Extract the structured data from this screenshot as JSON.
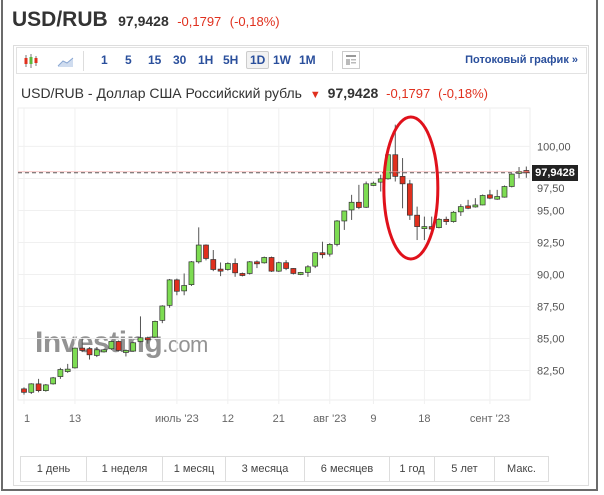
{
  "header": {
    "symbol": "USD/RUB",
    "price": "97,9428",
    "change": "-0,1797",
    "change_pct": "(-0,18%)"
  },
  "toolbar": {
    "chart_type_icons": [
      "candlestick-icon",
      "area-chart-icon"
    ],
    "intervals": [
      "1",
      "5",
      "15",
      "30",
      "1H",
      "5H",
      "1D",
      "1W",
      "1M"
    ],
    "active_interval": "1D",
    "doc_icon": "template-icon",
    "stream_link": "Потоковый график »"
  },
  "subtitle": {
    "title": "USD/RUB - Доллар США Российский рубль",
    "price": "97,9428",
    "change": "-0,1797",
    "change_pct": "(-0,18%)"
  },
  "watermark": {
    "text": "Investing",
    "suffix": ".com"
  },
  "chart_data": {
    "type": "candlestick",
    "ylim": [
      80.2,
      103.0
    ],
    "grid": true,
    "last_price": 97.9428,
    "last_price_label": "97,9428",
    "colors": {
      "up": "#7ddc52",
      "down": "#e0301e",
      "annotation": "#e0111b"
    },
    "yticks": [
      {
        "value": 100,
        "label": "100,00"
      },
      {
        "value": 97.5,
        "label": "97,50"
      },
      {
        "value": 95,
        "label": "95,00"
      },
      {
        "value": 92.5,
        "label": "92,50"
      },
      {
        "value": 90,
        "label": "90,00"
      },
      {
        "value": 87.5,
        "label": "87,50"
      },
      {
        "value": 85,
        "label": "85,00"
      },
      {
        "value": 82.5,
        "label": "82,50"
      }
    ],
    "xticks": [
      {
        "index": 0,
        "label": "1"
      },
      {
        "index": 7,
        "label": "13"
      },
      {
        "index": 21,
        "label": "июль '23"
      },
      {
        "index": 28,
        "label": "12"
      },
      {
        "index": 35,
        "label": "21"
      },
      {
        "index": 42,
        "label": "авг '23"
      },
      {
        "index": 48,
        "label": "9"
      },
      {
        "index": 55,
        "label": "18"
      },
      {
        "index": 64,
        "label": "сент '23"
      }
    ],
    "annotation": {
      "type": "ellipse",
      "around_candles": [
        50,
        56
      ]
    },
    "candles_ohlc": [
      [
        81.07,
        81.19,
        80.62,
        80.8
      ],
      [
        80.8,
        81.51,
        80.67,
        81.46
      ],
      [
        81.46,
        81.85,
        80.8,
        80.93
      ],
      [
        80.93,
        81.45,
        80.85,
        81.38
      ],
      [
        81.46,
        82.0,
        81.4,
        81.93
      ],
      [
        82.03,
        82.71,
        81.85,
        82.58
      ],
      [
        82.42,
        83.02,
        82.32,
        82.61
      ],
      [
        82.71,
        84.3,
        82.65,
        84.25
      ],
      [
        84.25,
        84.98,
        83.94,
        84.07
      ],
      [
        84.2,
        84.33,
        83.36,
        83.73
      ],
      [
        83.68,
        84.33,
        83.55,
        84.12
      ],
      [
        83.96,
        84.2,
        83.9,
        84.12
      ],
      [
        84.2,
        84.85,
        84.1,
        84.77
      ],
      [
        84.77,
        84.85,
        84.0,
        84.07
      ],
      [
        83.91,
        84.15,
        83.6,
        84.07
      ],
      [
        84.02,
        84.75,
        83.95,
        84.67
      ],
      [
        84.77,
        86.73,
        84.7,
        85.06
      ],
      [
        85.06,
        85.15,
        84.6,
        84.9
      ],
      [
        85.11,
        86.4,
        85.05,
        86.34
      ],
      [
        86.42,
        87.6,
        86.2,
        87.54
      ],
      [
        87.59,
        89.65,
        87.4,
        89.58
      ],
      [
        89.58,
        89.68,
        88.38,
        88.69
      ],
      [
        88.72,
        90.08,
        88.38,
        89.14
      ],
      [
        89.21,
        91.05,
        89.1,
        90.99
      ],
      [
        90.99,
        93.68,
        90.86,
        92.3
      ],
      [
        92.3,
        92.35,
        91.1,
        91.25
      ],
      [
        91.17,
        91.91,
        90.26,
        90.39
      ],
      [
        90.42,
        90.94,
        89.87,
        90.26
      ],
      [
        90.39,
        90.95,
        90.3,
        90.86
      ],
      [
        90.86,
        91.25,
        89.82,
        90.13
      ],
      [
        90.08,
        90.15,
        89.85,
        89.92
      ],
      [
        90.08,
        91.05,
        90.0,
        90.99
      ],
      [
        90.99,
        91.1,
        90.5,
        90.86
      ],
      [
        90.91,
        91.4,
        90.85,
        91.33
      ],
      [
        91.33,
        91.4,
        90.2,
        90.26
      ],
      [
        90.26,
        91.0,
        90.2,
        90.92
      ],
      [
        90.92,
        91.12,
        90.34,
        90.47
      ],
      [
        90.47,
        90.5,
        90.0,
        90.08
      ],
      [
        90.0,
        90.2,
        89.95,
        90.16
      ],
      [
        90.16,
        90.73,
        89.82,
        90.6
      ],
      [
        90.65,
        91.75,
        90.5,
        91.7
      ],
      [
        91.7,
        92.56,
        91.26,
        91.57
      ],
      [
        91.59,
        92.45,
        91.4,
        92.35
      ],
      [
        92.35,
        94.25,
        92.2,
        94.18
      ],
      [
        94.18,
        94.96,
        93.48,
        94.96
      ],
      [
        95.04,
        96.22,
        94.26,
        95.64
      ],
      [
        95.64,
        97.0,
        95.1,
        95.23
      ],
      [
        95.25,
        97.26,
        95.2,
        97.08
      ],
      [
        96.95,
        97.26,
        96.9,
        97.13
      ],
      [
        97.21,
        97.79,
        96.48,
        97.47
      ],
      [
        97.47,
        99.4,
        97.4,
        99.35
      ],
      [
        99.35,
        101.7,
        97.26,
        97.66
      ],
      [
        97.66,
        99.09,
        95.17,
        97.08
      ],
      [
        97.08,
        97.39,
        94.26,
        94.63
      ],
      [
        94.63,
        95.3,
        92.69,
        93.74
      ],
      [
        93.61,
        94.52,
        92.69,
        93.74
      ],
      [
        93.74,
        94.52,
        93.08,
        93.55
      ],
      [
        93.66,
        94.4,
        93.6,
        94.31
      ],
      [
        94.31,
        94.52,
        93.87,
        94.13
      ],
      [
        94.13,
        94.95,
        94.05,
        94.86
      ],
      [
        94.89,
        95.49,
        94.57,
        95.3
      ],
      [
        95.36,
        95.83,
        95.1,
        95.17
      ],
      [
        95.3,
        95.96,
        95.22,
        95.43
      ],
      [
        95.43,
        96.25,
        95.4,
        96.17
      ],
      [
        96.22,
        96.61,
        95.88,
        95.96
      ],
      [
        95.88,
        96.61,
        95.83,
        96.09
      ],
      [
        96.04,
        96.95,
        96.0,
        96.87
      ],
      [
        96.87,
        97.9,
        96.8,
        97.84
      ],
      [
        97.92,
        98.39,
        97.52,
        98.05
      ],
      [
        98.12,
        98.43,
        97.55,
        97.94
      ]
    ]
  },
  "ranges": [
    "1 день",
    "1 неделя",
    "1 месяц",
    "3 месяца",
    "6 месяцев",
    "1 год",
    "5 лет",
    "Макс."
  ]
}
